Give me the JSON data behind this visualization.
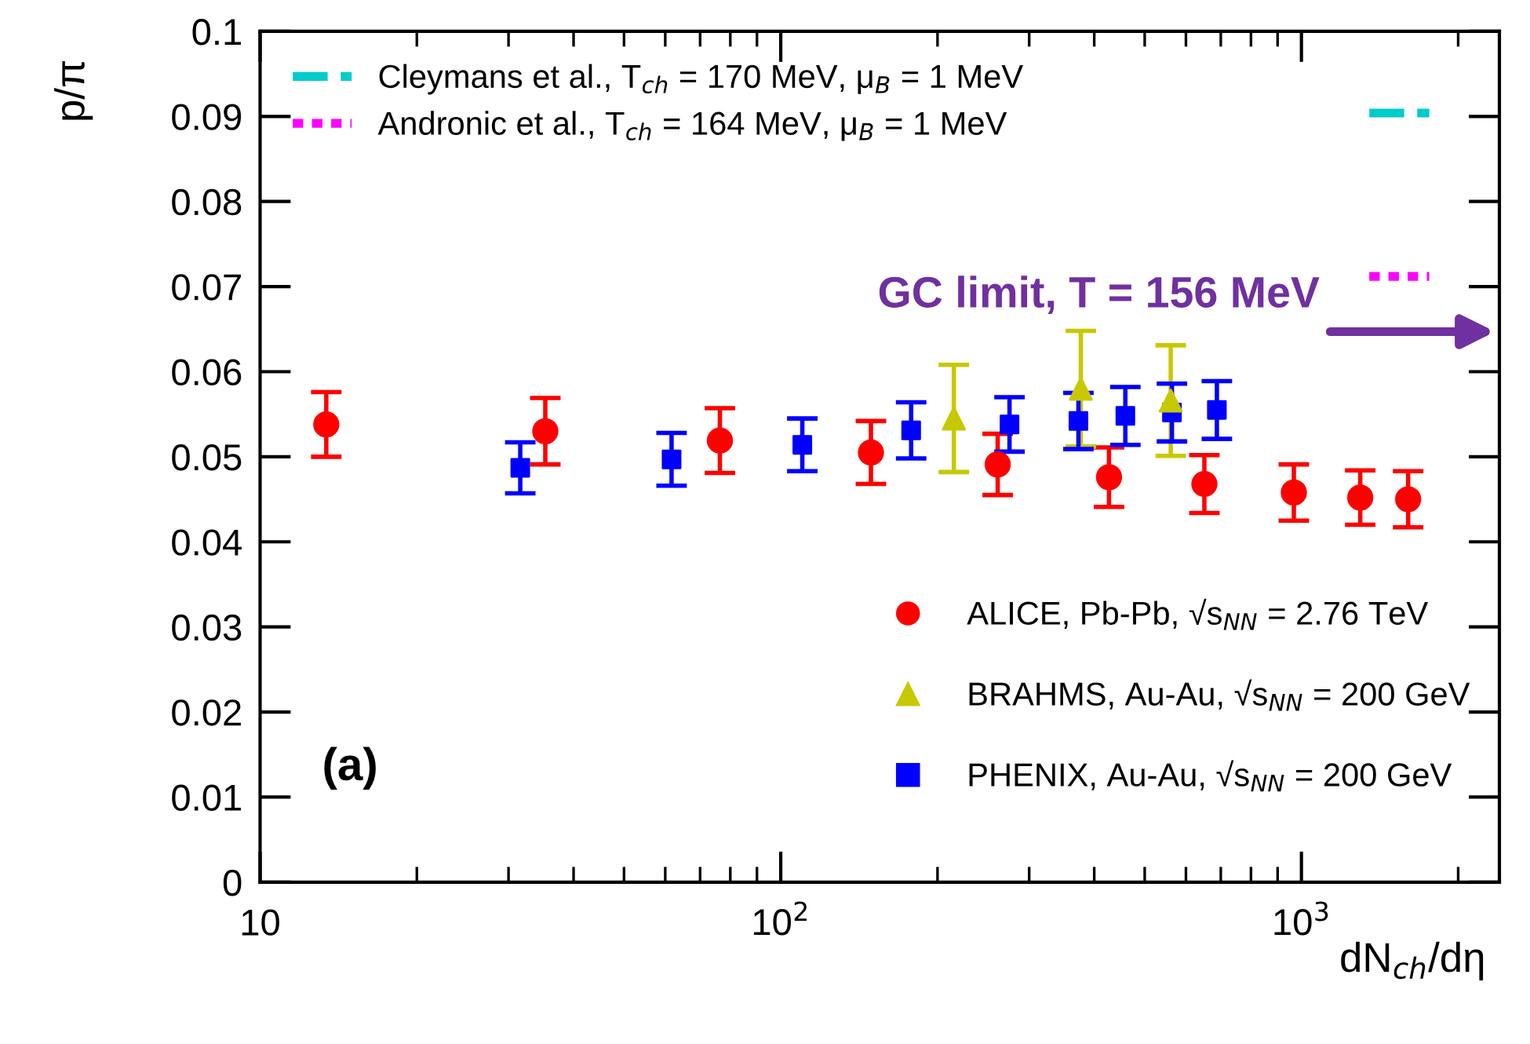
{
  "chart_data": {
    "type": "scatter",
    "xlabel": "dN$_{ch}$/dη",
    "ylabel": "p/π",
    "log": "x",
    "xlim": [
      10,
      2400
    ],
    "xticks": [
      10,
      {
        "value": 100,
        "label": "10$^{2}$"
      },
      {
        "value": 1000,
        "label": "10$^{3}$"
      }
    ],
    "ylim": [
      0,
      0.1
    ],
    "yticks": [
      0,
      0.01,
      0.02,
      0.03,
      0.04,
      0.05,
      0.06,
      0.07,
      0.08,
      0.09,
      0.1
    ],
    "grid": false,
    "legend": "top right",
    "series": [
      {
        "name": "Cleymans et al., T$_{ch}$ = 170 MeV, μ$_{B}$ = 1 MeV",
        "type": "line",
        "color": "#00cccc",
        "line_style": "dashed",
        "x": [
          1350,
          1760
        ],
        "values": [
          0.0904,
          0.0904
        ]
      },
      {
        "name": "Andronic et al., T$_{ch}$ = 164 MeV, μ$_{B}$ = 1 MeV",
        "type": "line",
        "color": "#ff00ff",
        "line_style": "dotted",
        "x": [
          1350,
          1760
        ],
        "values": [
          0.0712,
          0.0712
        ]
      },
      {
        "name": "ALICE, Pb-Pb, √s$_{NN}$ = 2.76 TeV",
        "marker": "circle",
        "color": "#ff0000",
        "x": [
          13.4,
          35.3,
          76.4,
          149,
          261,
          427,
          651,
          967,
          1297,
          1603
        ],
        "values": [
          0.0538,
          0.053,
          0.0519,
          0.0505,
          0.0491,
          0.0476,
          0.0468,
          0.0458,
          0.0452,
          0.045
        ],
        "errors": [
          0.0038,
          0.0039,
          0.0038,
          0.0037,
          0.0036,
          0.0035,
          0.0034,
          0.0033,
          0.0032,
          0.0033
        ]
      },
      {
        "name": "BRAHMS, Au-Au, √s$_{NN}$ = 200 GeV",
        "marker": "triangle",
        "color": "#c8c800",
        "x": [
          215,
          377,
          561
        ],
        "values": [
          0.0545,
          0.058,
          0.0566
        ],
        "errors": [
          0.0063,
          0.0068,
          0.0065
        ]
      },
      {
        "name": "PHENIX, Au-Au, √s$_{NN}$ = 200 GeV",
        "marker": "square",
        "color": "#0000ff",
        "x": [
          31.6,
          61.7,
          110,
          178,
          275,
          373,
          459,
          564,
          688
        ],
        "values": [
          0.0487,
          0.0497,
          0.0514,
          0.0531,
          0.0538,
          0.0542,
          0.0548,
          0.0552,
          0.0555
        ],
        "errors": [
          0.003,
          0.0031,
          0.0031,
          0.0033,
          0.0032,
          0.0033,
          0.0034,
          0.0034,
          0.0034
        ]
      }
    ],
    "annotations": [
      "GC limit, T = 156 MeV",
      "(a)"
    ]
  }
}
